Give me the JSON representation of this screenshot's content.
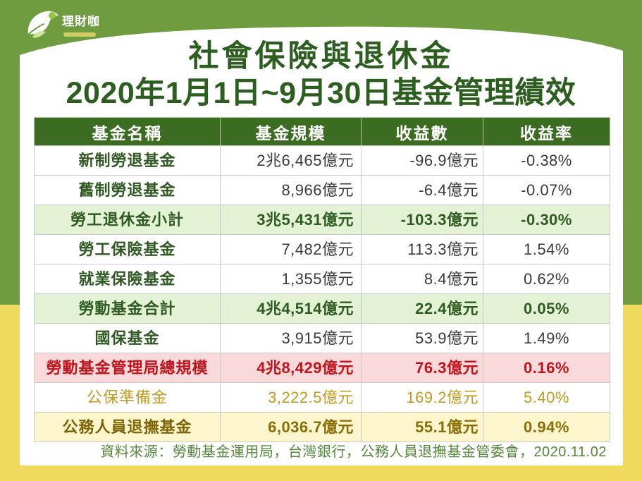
{
  "logo": {
    "name": "理財咖"
  },
  "colors": {
    "background_green": "#6f9c3f",
    "background_yellow": "#efd95e",
    "card": "#ffffff",
    "title": "#2c5e20",
    "header_bg": "#3b6c21",
    "header_text": "#ffffff",
    "source_text": "#55893a"
  },
  "chart_data": {
    "type": "table",
    "title": "社會保險與退休金",
    "subtitle": "2020年1月1日~9月30日基金管理績效",
    "columns": [
      "基金名稱",
      "基金規模",
      "收益數",
      "收益率"
    ],
    "rows": [
      {
        "fund": "新制勞退基金",
        "size": "2兆6,465億元",
        "earnings": "-96.9億元",
        "rate": "-0.38%",
        "bg": "#ffffff",
        "name_color": "#2f5a22",
        "value_color": "#3b3b3b",
        "name_bold": true,
        "value_bold": false
      },
      {
        "fund": "舊制勞退基金",
        "size": "8,966億元",
        "earnings": "-6.4億元",
        "rate": "-0.07%",
        "bg": "#ffffff",
        "name_color": "#2f5a22",
        "value_color": "#3b3b3b",
        "name_bold": true,
        "value_bold": false
      },
      {
        "fund": "勞工退休金小計",
        "size": "3兆5,431億元",
        "earnings": "-103.3億元",
        "rate": "-0.30%",
        "bg": "#e3f2d5",
        "name_color": "#2f5a22",
        "value_color": "#2f5a22",
        "name_bold": true,
        "value_bold": true
      },
      {
        "fund": "勞工保險基金",
        "size": "7,482億元",
        "earnings": "113.3億元",
        "rate": "1.54%",
        "bg": "#ffffff",
        "name_color": "#2f5a22",
        "value_color": "#3b3b3b",
        "name_bold": true,
        "value_bold": false
      },
      {
        "fund": "就業保險基金",
        "size": "1,355億元",
        "earnings": "8.4億元",
        "rate": "0.62%",
        "bg": "#ffffff",
        "name_color": "#2f5a22",
        "value_color": "#3b3b3b",
        "name_bold": true,
        "value_bold": false
      },
      {
        "fund": "勞動基金合計",
        "size": "4兆4,514億元",
        "earnings": "22.4億元",
        "rate": "0.05%",
        "bg": "#e3f2d5",
        "name_color": "#2f5a22",
        "value_color": "#2f5a22",
        "name_bold": true,
        "value_bold": true
      },
      {
        "fund": "國保基金",
        "size": "3,915億元",
        "earnings": "53.9億元",
        "rate": "1.49%",
        "bg": "#ffffff",
        "name_color": "#2f5a22",
        "value_color": "#3b3b3b",
        "name_bold": true,
        "value_bold": false
      },
      {
        "fund": "勞動基金管理局總規模",
        "size": "4兆8,429億元",
        "earnings": "76.3億元",
        "rate": "0.16%",
        "bg": "#f9d9d9",
        "name_color": "#c3131c",
        "value_color": "#c3131c",
        "name_bold": true,
        "value_bold": true
      },
      {
        "fund": "公保準備金",
        "size": "3,222.5億元",
        "earnings": "169.2億元",
        "rate": "5.40%",
        "bg": "#ffffff",
        "name_color": "#c49b1f",
        "value_color": "#c49b1f",
        "name_bold": false,
        "value_bold": false
      },
      {
        "fund": "公務人員退撫基金",
        "size": "6,036.7億元",
        "earnings": "55.1億元",
        "rate": "0.94%",
        "bg": "#fdf5cc",
        "name_color": "#7d6408",
        "value_color": "#8a6e08",
        "name_bold": true,
        "value_bold": true
      }
    ],
    "source": "資料來源：勞動基金運用局，台灣銀行，公務人員退撫基金管委會，2020.11.02"
  }
}
